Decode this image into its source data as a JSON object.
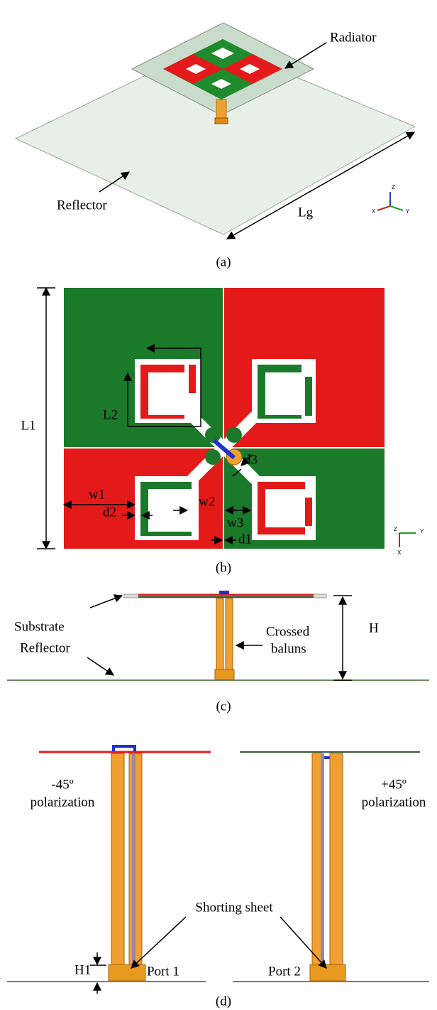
{
  "panel_a": {
    "radiator": "Radiator",
    "reflector": "Reflector",
    "lg": "Lg",
    "axis_z": "Z",
    "axis_y": "Y",
    "axis_x": "X",
    "caption": "(a)"
  },
  "panel_b": {
    "l1": "L1",
    "l2": "L2",
    "w1": "w1",
    "w2": "w2",
    "w3": "w3",
    "d1": "d1",
    "d2": "d2",
    "d3": "d3",
    "axis_z": "Z",
    "axis_y": "Y",
    "axis_x": "X",
    "caption": "(b)"
  },
  "panel_c": {
    "substrate": "Substrate",
    "reflector": "Reflector",
    "baluns": [
      "Crossed",
      "baluns"
    ],
    "h": "H",
    "caption": "(c)"
  },
  "panel_d": {
    "left_pol": [
      "-45º",
      "polarization"
    ],
    "right_pol": [
      "+45º",
      "polarization"
    ],
    "shorting_sheet": "Shorting sheet",
    "h1": "H1",
    "port1": "Port 1",
    "port2": "Port 2",
    "caption": "(d)"
  }
}
